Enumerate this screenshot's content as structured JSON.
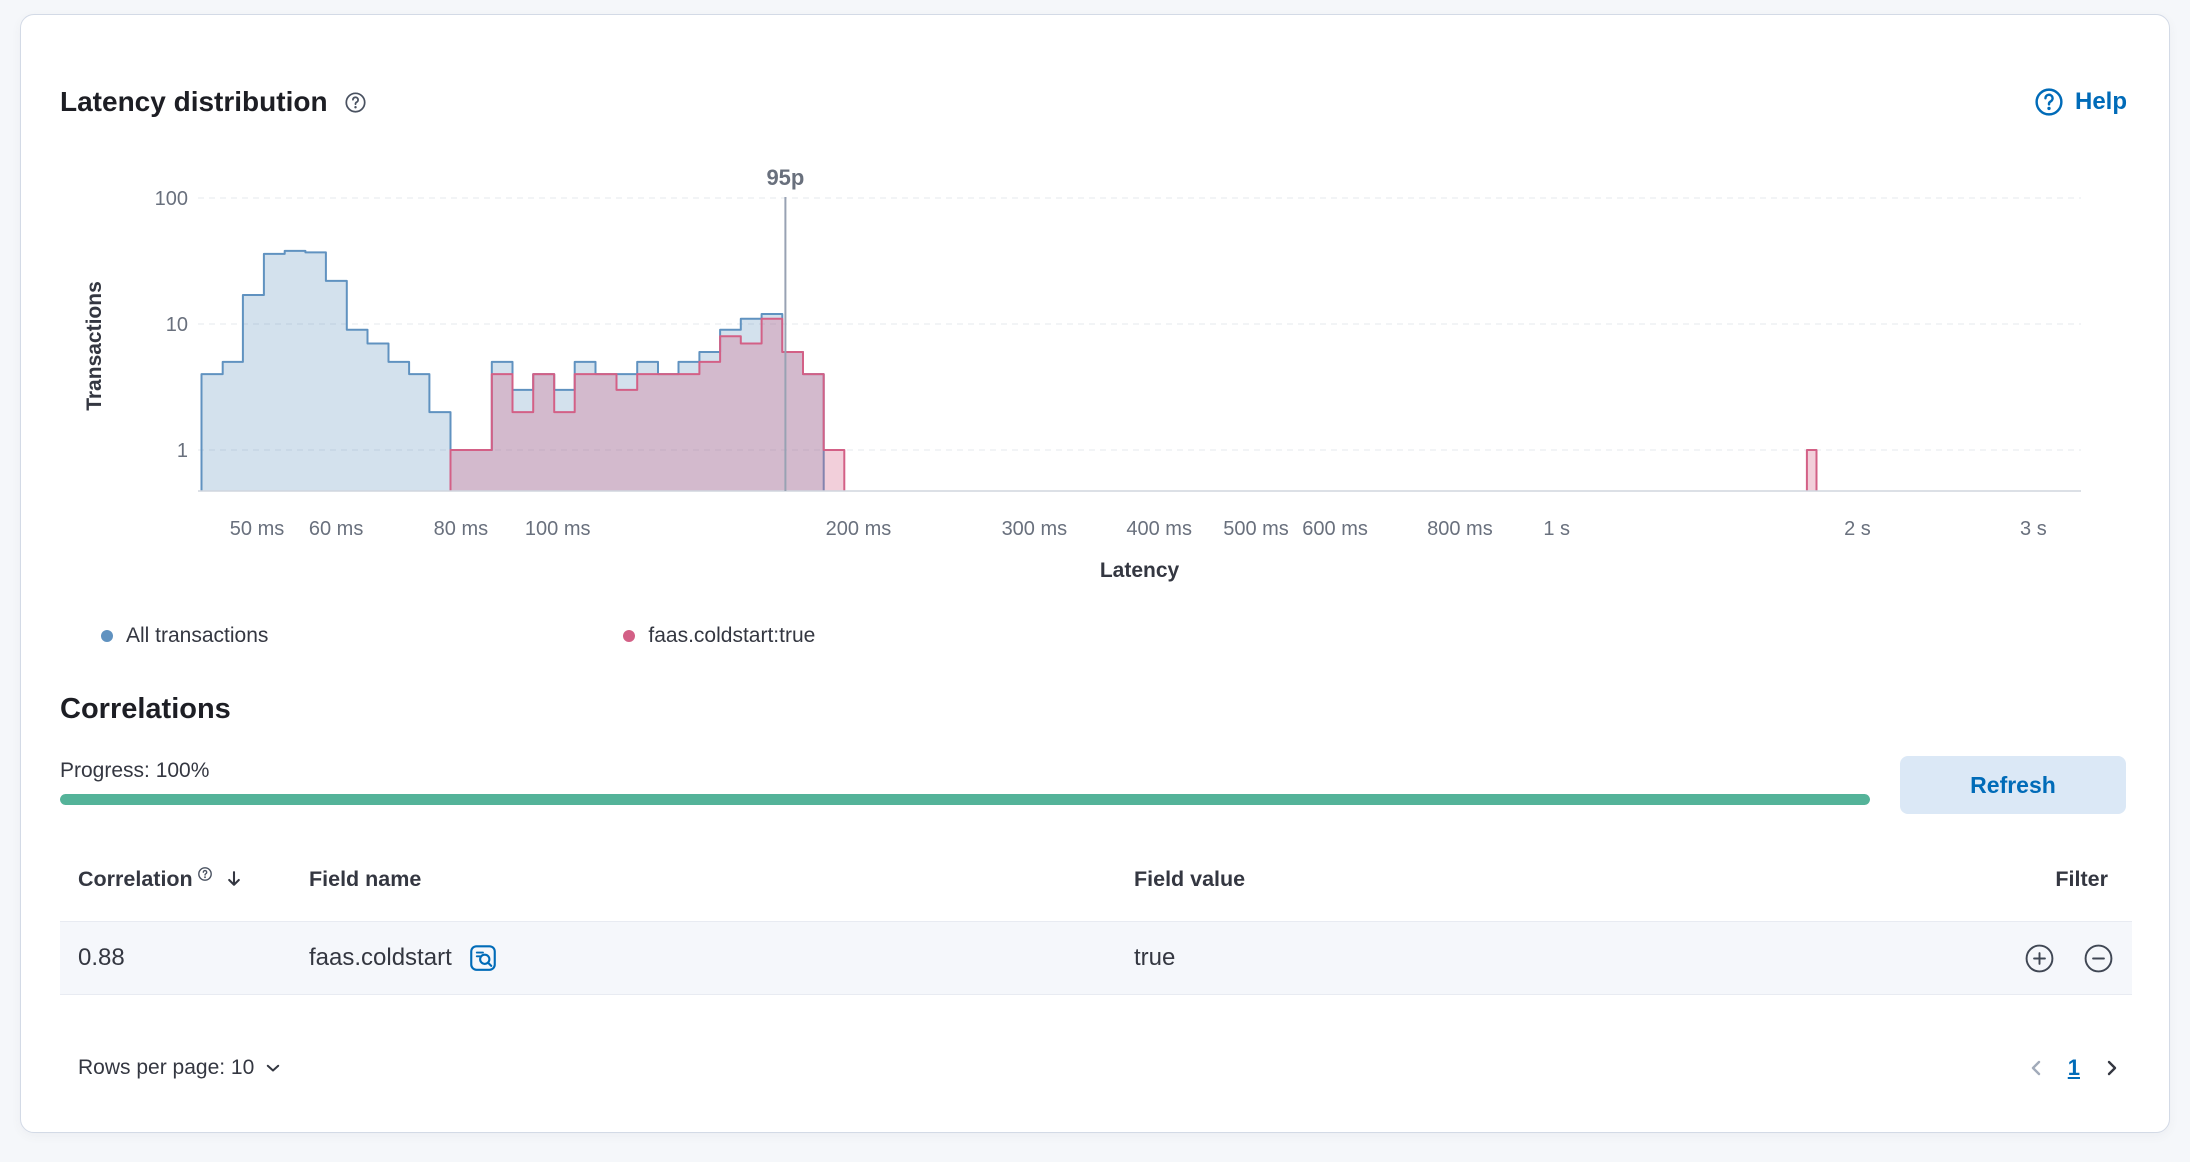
{
  "panel": {
    "title": "Latency distribution",
    "help": {
      "label": "Help"
    }
  },
  "chart_data": {
    "type": "histogram",
    "title": "Latency distribution",
    "xlabel": "Latency",
    "ylabel": "Transactions",
    "x_scale": "log",
    "y_scale": "log",
    "xlim_ms": [
      44,
      3400
    ],
    "ylim": [
      1,
      100
    ],
    "grid": "horizontal-dashed",
    "x_ticks": [
      {
        "v": 50,
        "label": "50 ms"
      },
      {
        "v": 60,
        "label": "60 ms"
      },
      {
        "v": 80,
        "label": "80 ms"
      },
      {
        "v": 100,
        "label": "100 ms"
      },
      {
        "v": 200,
        "label": "200 ms"
      },
      {
        "v": 300,
        "label": "300 ms"
      },
      {
        "v": 400,
        "label": "400 ms"
      },
      {
        "v": 500,
        "label": "500 ms"
      },
      {
        "v": 600,
        "label": "600 ms"
      },
      {
        "v": 800,
        "label": "800 ms"
      },
      {
        "v": 1000,
        "label": "1 s"
      },
      {
        "v": 2000,
        "label": "2 s"
      },
      {
        "v": 3000,
        "label": "3 s"
      }
    ],
    "y_ticks": [
      {
        "v": 100,
        "label": "100"
      },
      {
        "v": 10,
        "label": "10"
      },
      {
        "v": 1,
        "label": "1"
      }
    ],
    "percentile_marker": {
      "label": "95p",
      "value_ms": 169
    },
    "series": [
      {
        "name": "All transactions",
        "color": "#6092c0",
        "fill_opacity": 0.28,
        "segments": [
          [
            [
              44,
              4
            ],
            [
              46.2,
              5
            ],
            [
              48.4,
              17
            ],
            [
              50.8,
              36
            ],
            [
              53.3,
              38
            ],
            [
              55.9,
              37
            ],
            [
              58.6,
              22
            ],
            [
              61.5,
              9
            ],
            [
              64.5,
              7
            ],
            [
              67.7,
              5
            ],
            [
              71,
              4
            ],
            [
              74.4,
              2
            ],
            [
              78.1,
              1
            ],
            [
              81.9,
              1
            ],
            [
              85.9,
              5
            ],
            [
              90.1,
              3
            ],
            [
              94.5,
              4
            ],
            [
              99.2,
              3
            ],
            [
              104,
              5
            ],
            [
              109.1,
              4
            ],
            [
              114.5,
              4
            ],
            [
              120.1,
              5
            ],
            [
              126,
              4
            ],
            [
              132.1,
              5
            ],
            [
              138.6,
              6
            ],
            [
              145.4,
              9
            ],
            [
              152.5,
              11
            ],
            [
              160,
              12
            ],
            [
              167.8,
              6
            ],
            [
              176,
              4
            ],
            [
              184.6,
              0
            ]
          ]
        ]
      },
      {
        "name": "faas.coldstart:true",
        "color": "#d36086",
        "fill_opacity": 0.3,
        "segments": [
          [
            [
              78.1,
              1
            ],
            [
              81.9,
              1
            ],
            [
              85.9,
              4
            ],
            [
              90.1,
              2
            ],
            [
              94.5,
              4
            ],
            [
              99.2,
              2
            ],
            [
              104,
              4
            ],
            [
              109.1,
              4
            ],
            [
              114.5,
              3
            ],
            [
              120.1,
              4
            ],
            [
              126,
              4
            ],
            [
              132.1,
              4
            ],
            [
              138.6,
              5
            ],
            [
              145.4,
              8
            ],
            [
              152.5,
              7
            ],
            [
              160,
              11
            ],
            [
              167.8,
              6
            ],
            [
              176,
              4
            ],
            [
              184.6,
              1
            ],
            [
              193.6,
              0
            ]
          ],
          [
            [
              1780,
              1
            ],
            [
              1820,
              0
            ]
          ]
        ]
      }
    ]
  },
  "legend": {
    "items": [
      {
        "label": "All transactions",
        "color": "#6092c0"
      },
      {
        "label": "faas.coldstart:true",
        "color": "#d36086"
      }
    ]
  },
  "correlations": {
    "heading": "Correlations",
    "progress": {
      "label": "Progress: 100%",
      "percent": 100,
      "color": "#54b399"
    },
    "refresh_button": "Refresh",
    "table": {
      "columns": {
        "correlation": "Correlation",
        "field_name": "Field name",
        "field_value": "Field value",
        "filter": "Filter"
      },
      "rows": [
        {
          "correlation": "0.88",
          "field_name": "faas.coldstart",
          "field_value": "true"
        }
      ]
    },
    "footer": {
      "rows_per_page": "Rows per page: 10",
      "page": "1"
    }
  }
}
